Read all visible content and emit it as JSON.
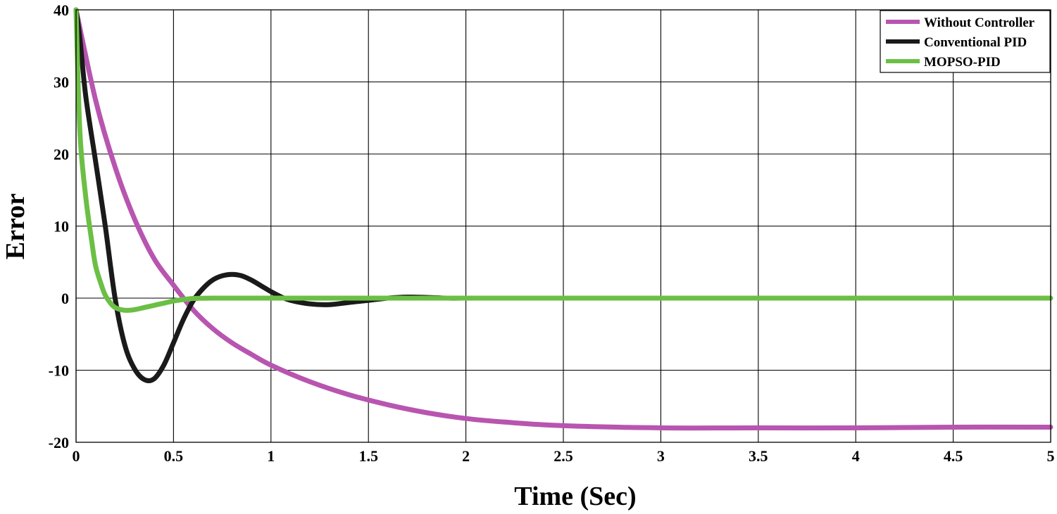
{
  "chart_data": {
    "type": "line",
    "title": "",
    "xlabel": "Time (Sec)",
    "ylabel": "Error",
    "xlim": [
      0,
      5
    ],
    "ylim": [
      -20,
      40
    ],
    "x_ticks": [
      0,
      0.5,
      1,
      1.5,
      2,
      2.5,
      3,
      3.5,
      4,
      4.5,
      5
    ],
    "x_tick_labels": [
      "0",
      "0.5",
      "1",
      "1.5",
      "2",
      "2.5",
      "3",
      "3.5",
      "4",
      "4.5",
      "5"
    ],
    "y_ticks": [
      -20,
      -10,
      0,
      10,
      20,
      30,
      40
    ],
    "y_tick_labels": [
      "-20",
      "-10",
      "0",
      "10",
      "20",
      "30",
      "40"
    ],
    "grid": true,
    "legend_position": "top-right",
    "series": [
      {
        "name": "Without Controller",
        "color": "#b855b0",
        "x": [
          0,
          0.1,
          0.2,
          0.3,
          0.4,
          0.5,
          0.6,
          0.7,
          0.8,
          0.9,
          1.0,
          1.2,
          1.4,
          1.6,
          1.8,
          2.0,
          2.2,
          2.5,
          3.0,
          3.5,
          4.0,
          4.5,
          5.0
        ],
        "y": [
          40,
          27.5,
          18.2,
          11.0,
          5.5,
          1.8,
          -1.6,
          -4.2,
          -6.2,
          -7.8,
          -9.3,
          -11.6,
          -13.4,
          -14.8,
          -15.9,
          -16.7,
          -17.2,
          -17.7,
          -18.0,
          -18.0,
          -18.0,
          -17.9,
          -17.9
        ]
      },
      {
        "name": "Conventional PID",
        "color": "#1a1a1a",
        "x": [
          0,
          0.02,
          0.05,
          0.1,
          0.15,
          0.2,
          0.25,
          0.3,
          0.35,
          0.4,
          0.45,
          0.5,
          0.55,
          0.6,
          0.65,
          0.7,
          0.75,
          0.8,
          0.85,
          0.9,
          0.95,
          1.0,
          1.05,
          1.1,
          1.2,
          1.3,
          1.4,
          1.5,
          1.6,
          1.7,
          1.8,
          1.9,
          2.0
        ],
        "y": [
          40,
          36,
          28,
          19,
          10,
          0,
          -6.5,
          -9.8,
          -11.3,
          -11.2,
          -9.3,
          -6.2,
          -3.0,
          -0.4,
          1.3,
          2.5,
          3.1,
          3.3,
          3.1,
          2.5,
          1.7,
          0.9,
          0.2,
          -0.3,
          -0.8,
          -0.9,
          -0.6,
          -0.3,
          0.0,
          0.15,
          0.1,
          0.0,
          0.0
        ]
      },
      {
        "name": "MOPSO-PID",
        "color": "#6cbf45",
        "x": [
          0,
          0.02,
          0.05,
          0.08,
          0.1,
          0.13,
          0.15,
          0.18,
          0.2,
          0.23,
          0.26,
          0.3,
          0.35,
          0.4,
          0.45,
          0.5,
          0.55,
          0.6,
          0.7,
          1.0,
          2.0,
          3.0,
          4.0,
          5.0
        ],
        "y": [
          40,
          23,
          14,
          8,
          4.5,
          1.8,
          0.4,
          -0.8,
          -1.3,
          -1.6,
          -1.7,
          -1.6,
          -1.3,
          -1.0,
          -0.7,
          -0.4,
          -0.2,
          -0.05,
          0.0,
          0.0,
          0.0,
          0.0,
          0.0,
          0.0
        ]
      }
    ]
  }
}
